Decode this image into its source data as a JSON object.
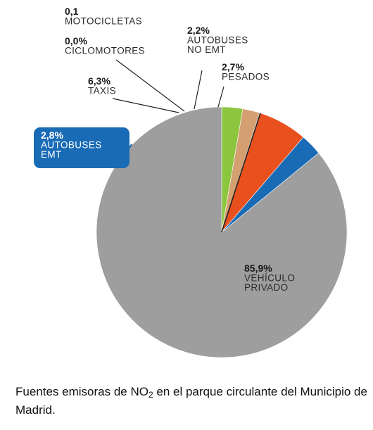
{
  "chart_data": {
    "type": "pie",
    "slices": [
      {
        "name": "VEHÍCULO PRIVADO",
        "value": 85.9,
        "value_label": "85,9%",
        "label_lines": [
          "VEHÍCULO",
          "PRIVADO"
        ],
        "color": "#9e9e9e"
      },
      {
        "name": "AUTOBUSES EMT",
        "value": 2.8,
        "value_label": "2,8%",
        "label_lines": [
          "AUTOBUSES",
          "EMT"
        ],
        "color": "#1a6bb5"
      },
      {
        "name": "TAXIS",
        "value": 6.3,
        "value_label": "6,3%",
        "label_lines": [
          "TAXIS"
        ],
        "color": "#e8501e"
      },
      {
        "name": "CICLOMOTORES",
        "value": 0.0,
        "value_label": "0,0%",
        "label_lines": [
          "CICLOMOTORES"
        ],
        "color": "#222222"
      },
      {
        "name": "MOTOCICLETAS",
        "value": 0.1,
        "value_label": "0,1",
        "label_lines": [
          "MOTOCICLETAS"
        ],
        "color": "#222222"
      },
      {
        "name": "AUTOBUSES NO EMT",
        "value": 2.2,
        "value_label": "2,2%",
        "label_lines": [
          "AUTOBUSES",
          "NO EMT"
        ],
        "color": "#d4a072"
      },
      {
        "name": "PESADOS",
        "value": 2.7,
        "value_label": "2,7%",
        "label_lines": [
          "PESADOS"
        ],
        "color": "#8cc63f"
      }
    ],
    "start_angle": "12 o'clock",
    "highlighted_slice": "AUTOBUSES EMT"
  },
  "caption": {
    "before": "Fuentes emisoras de NO",
    "sub": "2",
    "after": " en el parque circulante del Municipio de Madrid."
  }
}
